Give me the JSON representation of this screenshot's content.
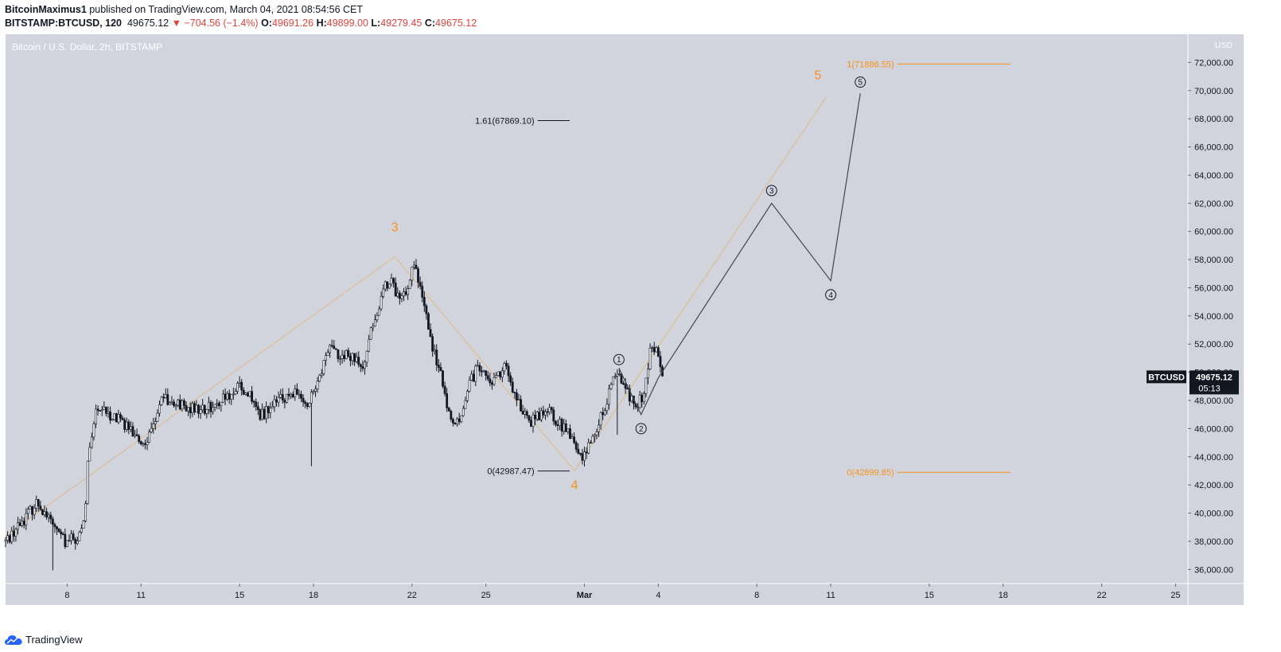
{
  "header": {
    "author": "BitcoinMaximus1",
    "published_text": "published on TradingView.com, March 04, 2021 08:54:56 CET",
    "symbol": "BITSTAMP:BTCUSD, 120",
    "last": "49675.12",
    "change": "−704.56 (−1.4%)",
    "o_label": "O:",
    "o": "49691.26",
    "h_label": "H:",
    "h": "49899.00",
    "l_label": "L:",
    "l": "49279.45",
    "c_label": "C:",
    "c": "49675.12"
  },
  "chart_title": "Bitcoin / U.S. Dollar, 2h, BITSTAMP",
  "footer": {
    "brand": "TradingView"
  },
  "colors": {
    "bg_plot": "#d1d4dc",
    "candle": "#131722",
    "orange": "#f7931a",
    "projection": "#434651",
    "badge_bg": "#131722",
    "price_text": "#131722"
  },
  "icons": {
    "logo": "tradingview-cloud-icon",
    "down_arrow": "triangle-down-icon"
  },
  "chart_data": {
    "type": "candlestick",
    "title": "Bitcoin / U.S. Dollar, 2h, BITSTAMP",
    "xlabel": "",
    "ylabel": "",
    "currency": "USD",
    "ylim": [
      35000,
      74000
    ],
    "y_ticks": [
      36000,
      38000,
      40000,
      42000,
      44000,
      46000,
      48000,
      50000,
      52000,
      54000,
      56000,
      58000,
      60000,
      62000,
      64000,
      66000,
      68000,
      70000,
      72000
    ],
    "x_ticks": [
      {
        "label": "8",
        "day": 8
      },
      {
        "label": "11",
        "day": 11
      },
      {
        "label": "15",
        "day": 15
      },
      {
        "label": "18",
        "day": 18
      },
      {
        "label": "22",
        "day": 22
      },
      {
        "label": "25",
        "day": 25
      },
      {
        "label": "Mar",
        "day": 29,
        "bold": true
      },
      {
        "label": "4",
        "day": 32
      },
      {
        "label": "8",
        "day": 36
      },
      {
        "label": "11",
        "day": 39
      },
      {
        "label": "15",
        "day": 43
      },
      {
        "label": "18",
        "day": 46
      },
      {
        "label": "22",
        "day": 50
      },
      {
        "label": "25",
        "day": 53
      }
    ],
    "xlim_days": [
      5.5,
      53.5
    ],
    "price_path": [
      [
        5.5,
        38000
      ],
      [
        6.2,
        39500
      ],
      [
        6.8,
        40800
      ],
      [
        7.3,
        39500
      ],
      [
        7.9,
        38000
      ],
      [
        8.5,
        38300
      ],
      [
        8.7,
        39200
      ],
      [
        8.85,
        44500
      ],
      [
        9.2,
        47500
      ],
      [
        10.0,
        46800
      ],
      [
        10.6,
        46000
      ],
      [
        11.0,
        44800
      ],
      [
        11.4,
        45800
      ],
      [
        11.8,
        48200
      ],
      [
        12.6,
        47600
      ],
      [
        13.4,
        47200
      ],
      [
        14.2,
        48000
      ],
      [
        15.0,
        48900
      ],
      [
        15.4,
        48400
      ],
      [
        15.8,
        46800
      ],
      [
        16.4,
        47800
      ],
      [
        17.2,
        48600
      ],
      [
        17.8,
        47700
      ],
      [
        18.2,
        49500
      ],
      [
        18.6,
        51700
      ],
      [
        19.6,
        50900
      ],
      [
        20.0,
        50400
      ],
      [
        20.3,
        52600
      ],
      [
        20.8,
        55800
      ],
      [
        21.1,
        56700
      ],
      [
        21.5,
        55000
      ],
      [
        21.9,
        56400
      ],
      [
        22.1,
        58000
      ],
      [
        22.4,
        55500
      ],
      [
        22.8,
        52000
      ],
      [
        23.1,
        50200
      ],
      [
        23.5,
        47000
      ],
      [
        23.9,
        46600
      ],
      [
        24.3,
        49200
      ],
      [
        24.8,
        50600
      ],
      [
        25.3,
        49200
      ],
      [
        25.8,
        50700
      ],
      [
        26.2,
        48300
      ],
      [
        26.8,
        46400
      ],
      [
        27.4,
        47400
      ],
      [
        27.9,
        46600
      ],
      [
        28.5,
        45400
      ],
      [
        28.9,
        43800
      ],
      [
        29.1,
        44400
      ],
      [
        29.6,
        46500
      ],
      [
        30.0,
        48400
      ],
      [
        30.3,
        50000
      ],
      [
        30.7,
        48800
      ],
      [
        31.0,
        47600
      ],
      [
        31.4,
        48400
      ],
      [
        31.7,
        51800
      ],
      [
        32.0,
        51300
      ],
      [
        32.2,
        49700
      ]
    ],
    "orange_waves": [
      {
        "label": "3",
        "day": 21.3,
        "price": 58200,
        "label_price": 60000
      },
      {
        "label": "4",
        "day": 28.6,
        "price": 43000,
        "label_price": 41700
      },
      {
        "label": "5",
        "day": 38.8,
        "price": 69500,
        "label_price": 70800
      }
    ],
    "orange_wave_start": {
      "day": 5.5,
      "price": 38400
    },
    "projection_path": [
      {
        "day": 30.4,
        "price": 50300,
        "label": "1",
        "label_price": 50900
      },
      {
        "day": 31.3,
        "price": 47000,
        "label": "2",
        "label_price": 46000
      },
      {
        "day": 36.6,
        "price": 62000,
        "label": "3",
        "label_price": 62900
      },
      {
        "day": 39.0,
        "price": 56500,
        "label": "4",
        "label_price": 55500
      },
      {
        "day": 40.2,
        "price": 69800,
        "label": "5",
        "label_price": 70600
      }
    ],
    "projection_start": {
      "day": 32.0,
      "price": 49600
    },
    "fib_levels": [
      {
        "label": "1(71886.55)",
        "price": 71886.55,
        "color": "orange",
        "day_from": 41.7,
        "day_to": 46.3
      },
      {
        "label": "0(42899.85)",
        "price": 42899.85,
        "color": "orange",
        "day_from": 41.7,
        "day_to": 46.3
      },
      {
        "label": "1.61(67869.10)",
        "price": 67869.1,
        "color": "black",
        "day_from": 27.1,
        "day_to": 28.4
      },
      {
        "label": "0(42987.47)",
        "price": 42987.47,
        "color": "black",
        "day_from": 27.1,
        "day_to": 28.4
      }
    ],
    "last_price_badge": {
      "symbol": "BTCUSD",
      "price": "49675.12",
      "countdown": "05:13",
      "value": 49675.12
    }
  }
}
